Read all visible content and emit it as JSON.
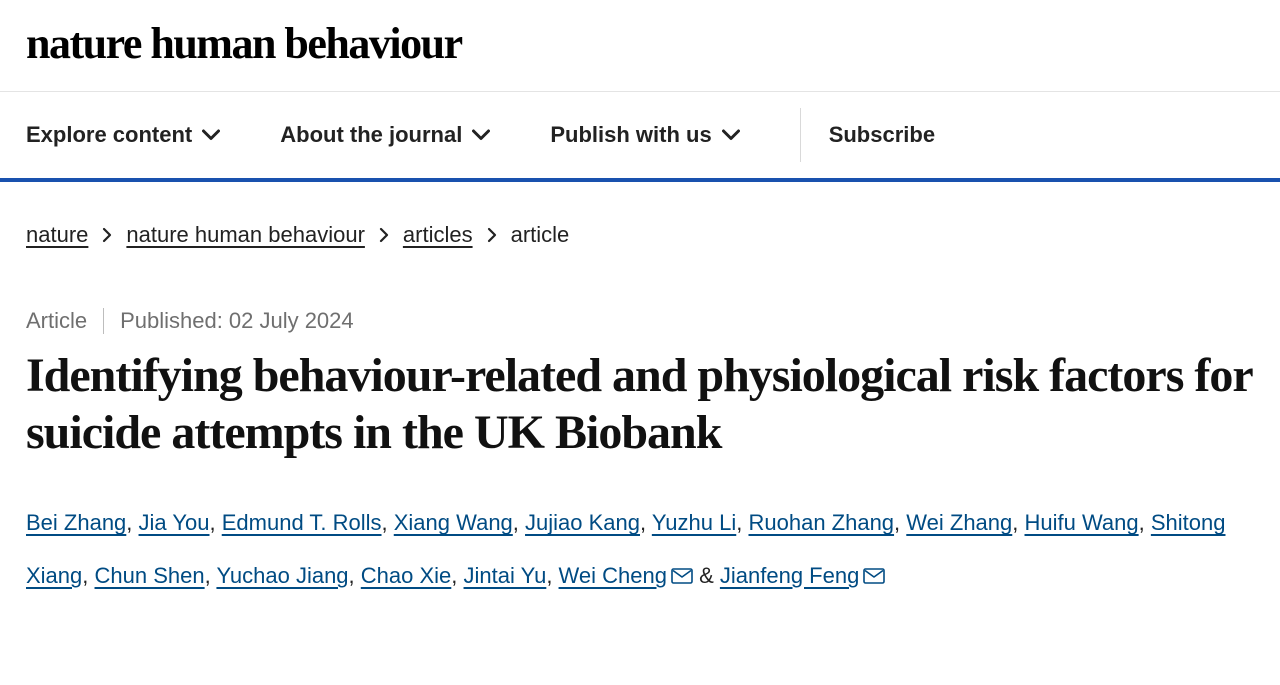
{
  "brand": {
    "journal_title": "nature human behaviour"
  },
  "nav": {
    "items": [
      {
        "label": "Explore content",
        "has_dropdown": true
      },
      {
        "label": "About the journal",
        "has_dropdown": true
      },
      {
        "label": "Publish with us",
        "has_dropdown": true
      }
    ],
    "subscribe": "Subscribe",
    "accent_color": "#1951ae"
  },
  "breadcrumb": {
    "items": [
      {
        "label": "nature",
        "link": true
      },
      {
        "label": "nature human behaviour",
        "link": true
      },
      {
        "label": "articles",
        "link": true
      },
      {
        "label": "article",
        "link": false
      }
    ]
  },
  "meta": {
    "type": "Article",
    "published_label": "Published:",
    "published_date": "02 July 2024"
  },
  "article": {
    "title": "Identifying behaviour-related and physiological risk factors for suicide attempts in the UK Biobank"
  },
  "authors": [
    {
      "name": "Bei Zhang",
      "corresponding": false
    },
    {
      "name": "Jia You",
      "corresponding": false
    },
    {
      "name": "Edmund T. Rolls",
      "corresponding": false
    },
    {
      "name": "Xiang Wang",
      "corresponding": false
    },
    {
      "name": "Jujiao Kang",
      "corresponding": false
    },
    {
      "name": "Yuzhu Li",
      "corresponding": false
    },
    {
      "name": "Ruohan Zhang",
      "corresponding": false
    },
    {
      "name": "Wei Zhang",
      "corresponding": false
    },
    {
      "name": "Huifu Wang",
      "corresponding": false
    },
    {
      "name": "Shitong Xiang",
      "corresponding": false
    },
    {
      "name": "Chun Shen",
      "corresponding": false
    },
    {
      "name": "Yuchao Jiang",
      "corresponding": false
    },
    {
      "name": "Chao Xie",
      "corresponding": false
    },
    {
      "name": "Jintai Yu",
      "corresponding": false
    },
    {
      "name": "Wei Cheng",
      "corresponding": true
    },
    {
      "name": "Jianfeng Feng",
      "corresponding": true
    }
  ],
  "colors": {
    "link": "#004b83",
    "text": "#222222",
    "muted": "#6f6f6f",
    "border": "#e4e4e4"
  }
}
